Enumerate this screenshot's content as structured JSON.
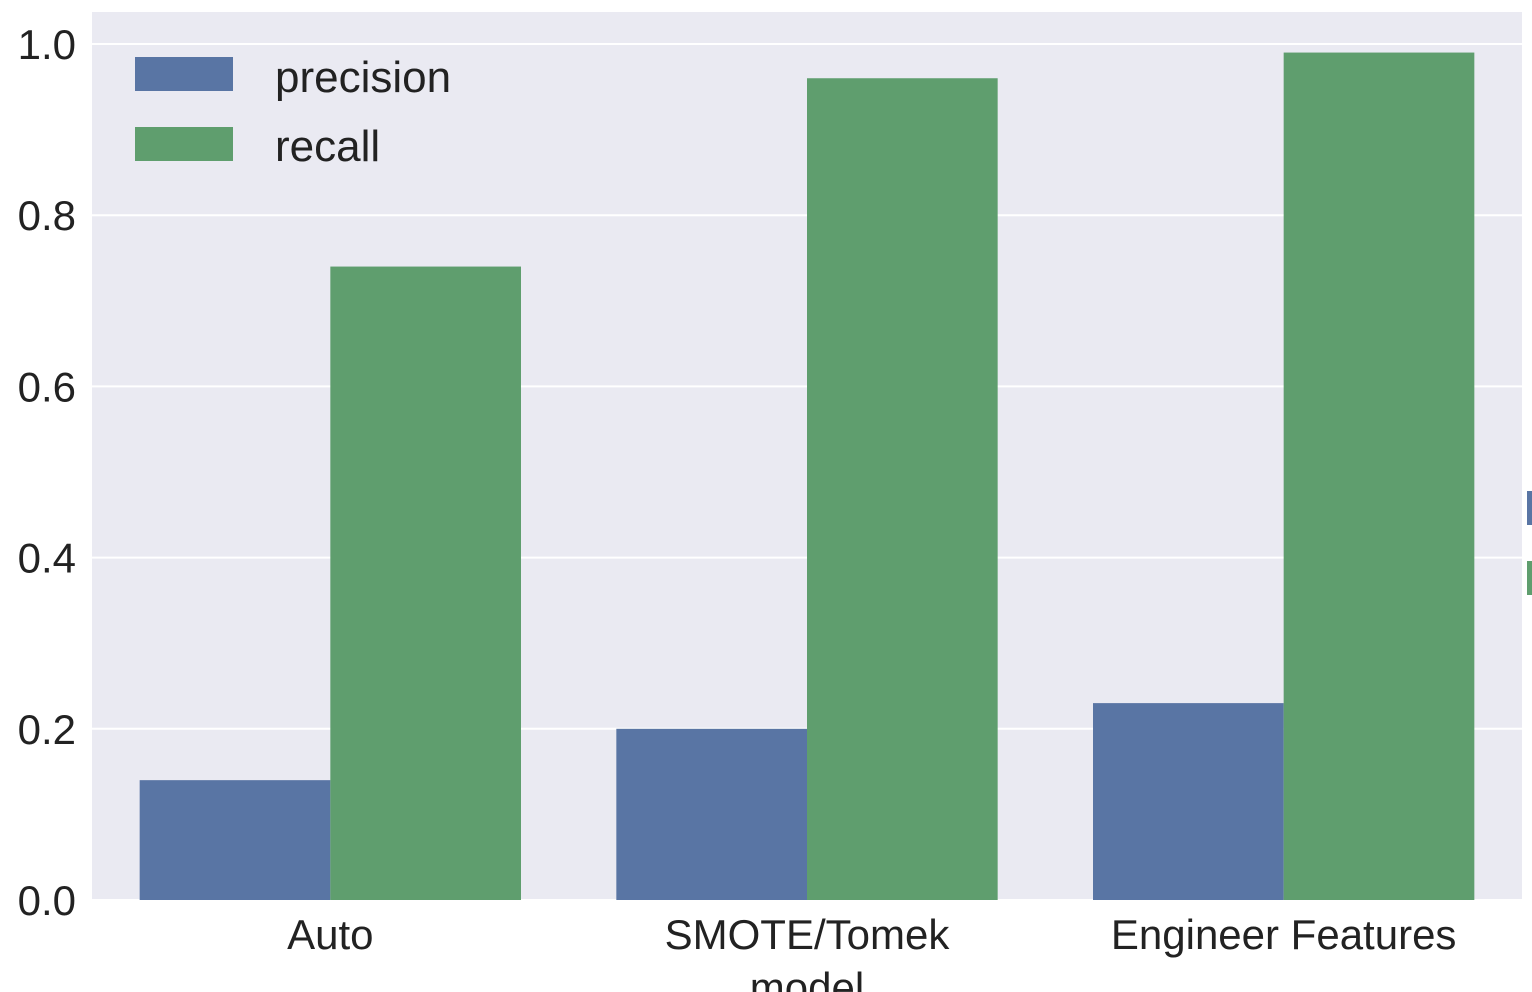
{
  "chart_data": {
    "type": "bar",
    "title": "",
    "xlabel": "model",
    "ylabel": "",
    "categories": [
      "Auto",
      "SMOTE/Tomek",
      "Engineer Features"
    ],
    "series": [
      {
        "name": "precision",
        "color": "#5975a4",
        "values": [
          0.14,
          0.2,
          0.23
        ]
      },
      {
        "name": "recall",
        "color": "#5f9e6e",
        "values": [
          0.74,
          0.96,
          0.99
        ]
      }
    ],
    "ylim": [
      0,
      1.0
    ],
    "yticks": [
      "0.0",
      "0.2",
      "0.4",
      "0.6",
      "0.8",
      "1.0"
    ],
    "grid": true,
    "legend_position": "top-left",
    "background_color": "#eaeaf2"
  }
}
